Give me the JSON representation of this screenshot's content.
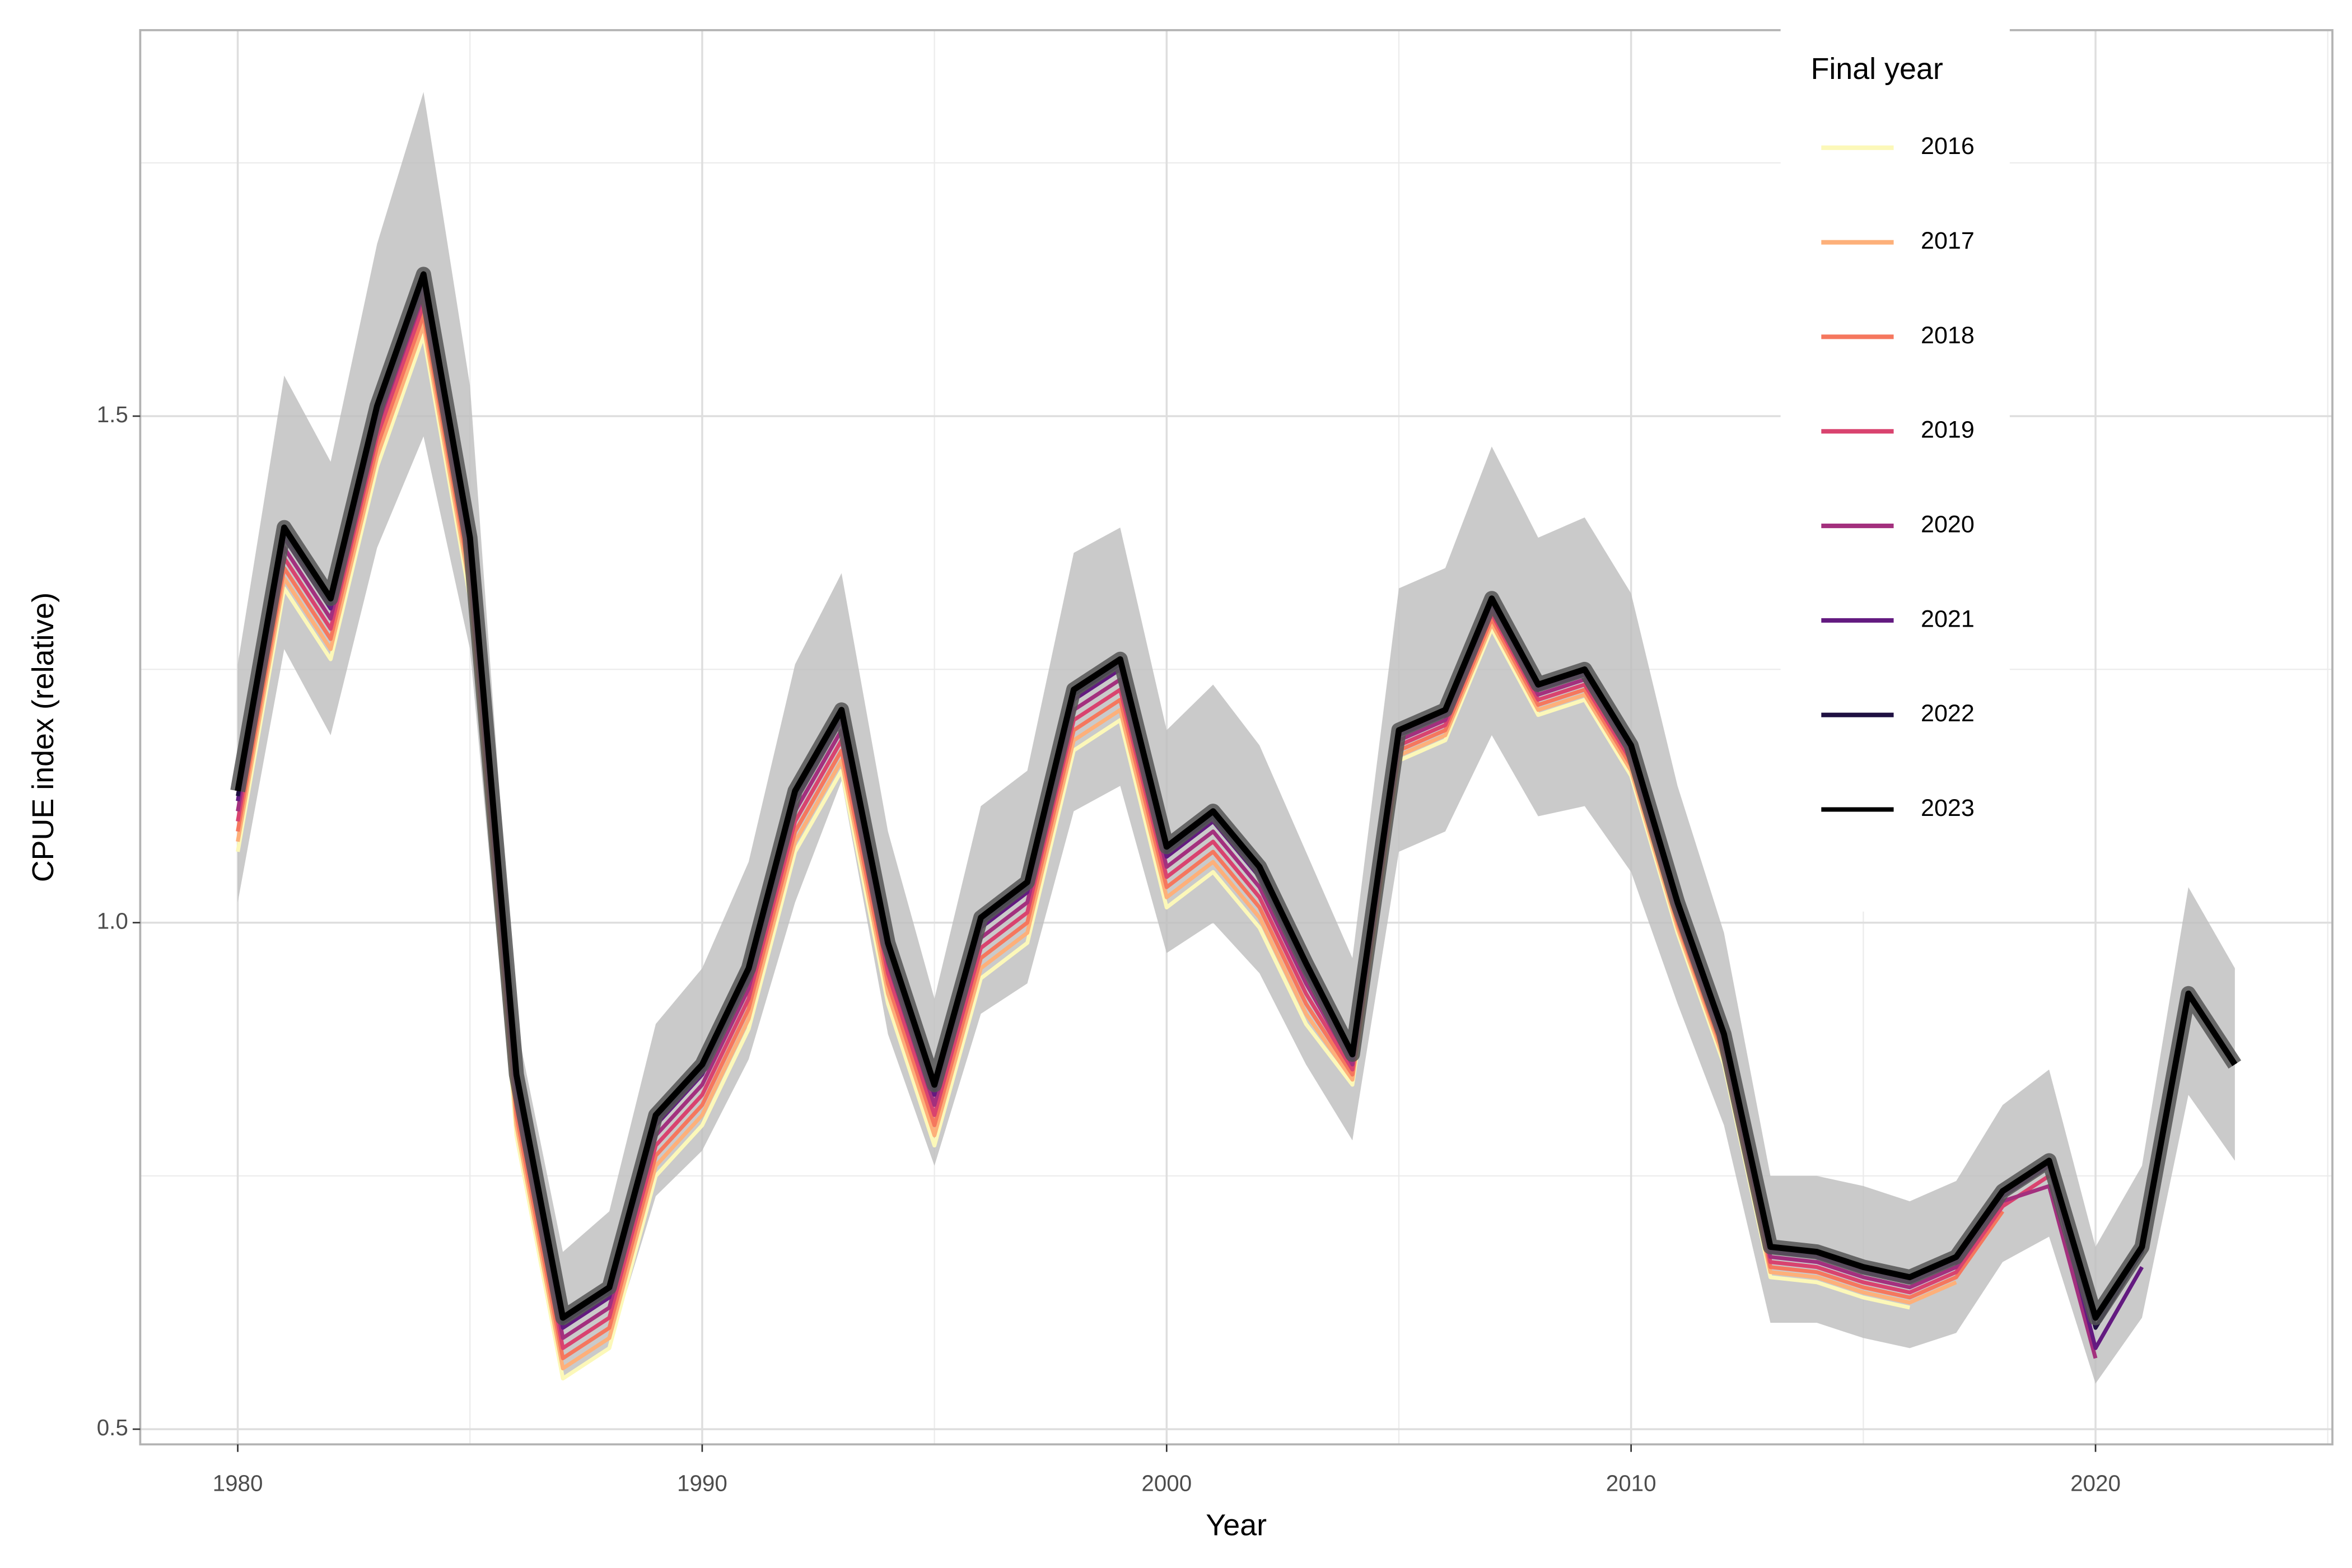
{
  "chart_data": {
    "type": "line",
    "x_label": "Year",
    "y_label": "CPUE index (relative)",
    "legend_title": "Final year",
    "legend_position": "top-right",
    "grid": true,
    "xlim": [
      1977.9,
      2025.1
    ],
    "ylim": [
      0.485,
      1.881
    ],
    "xticks": [
      1980,
      1990,
      2000,
      2010,
      2020
    ],
    "xminorticks": [
      1985,
      1995,
      2005,
      2015,
      2025
    ],
    "yticks": [
      0.5,
      {
        "value": 1,
        "label": "1.0"
      },
      1.5
    ],
    "yminorticks": [
      0.75,
      1.25,
      1.75
    ],
    "x": [
      1980,
      1981,
      1982,
      1983,
      1984,
      1985,
      1986,
      1987,
      1988,
      1989,
      1990,
      1991,
      1992,
      1993,
      1994,
      1995,
      1996,
      1997,
      1998,
      1999,
      2000,
      2001,
      2002,
      2003,
      2004,
      2005,
      2006,
      2007,
      2008,
      2009,
      2010,
      2011,
      2012,
      2013,
      2014,
      2015,
      2016,
      2017,
      2018,
      2019,
      2020,
      2021,
      2022,
      2023
    ],
    "band_color": "#bdbdbd",
    "band_upper": [
      1.255,
      1.54,
      1.455,
      1.67,
      1.82,
      1.53,
      0.9,
      0.675,
      0.715,
      0.9,
      0.955,
      1.06,
      1.255,
      1.345,
      1.09,
      0.925,
      1.115,
      1.15,
      1.365,
      1.39,
      1.19,
      1.235,
      1.175,
      1.07,
      0.965,
      1.33,
      1.35,
      1.47,
      1.38,
      1.4,
      1.325,
      1.135,
      0.99,
      0.75,
      0.75,
      0.74,
      0.725,
      0.745,
      0.82,
      0.855,
      0.68,
      0.76,
      1.035,
      0.955
    ],
    "band_lower": [
      1.02,
      1.27,
      1.185,
      1.37,
      1.48,
      1.27,
      0.78,
      0.55,
      0.58,
      0.73,
      0.775,
      0.865,
      1.02,
      1.14,
      0.89,
      0.76,
      0.91,
      0.94,
      1.11,
      1.135,
      0.97,
      1.0,
      0.95,
      0.86,
      0.785,
      1.07,
      1.09,
      1.185,
      1.105,
      1.115,
      1.05,
      0.92,
      0.8,
      0.605,
      0.605,
      0.59,
      0.58,
      0.595,
      0.665,
      0.69,
      0.545,
      0.61,
      0.83,
      0.765
    ],
    "series": [
      {
        "name": "2016",
        "color": "#FCF8B9",
        "values": [
          1.07,
          1.33,
          1.26,
          1.45,
          1.58,
          1.32,
          0.79,
          0.55,
          0.58,
          0.75,
          0.8,
          0.895,
          1.07,
          1.15,
          0.92,
          0.78,
          0.945,
          0.98,
          1.17,
          1.2,
          1.015,
          1.05,
          0.995,
          0.9,
          0.84,
          1.16,
          1.18,
          1.29,
          1.205,
          1.22,
          1.145,
          0.99,
          0.86,
          0.65,
          0.645,
          0.63,
          0.62,
          null,
          null,
          null,
          null,
          null,
          null,
          null
        ]
      },
      {
        "name": "2017",
        "color": "#FDB07A",
        "values": [
          1.08,
          1.34,
          1.27,
          1.46,
          1.59,
          1.33,
          0.8,
          0.56,
          0.59,
          0.76,
          0.81,
          0.905,
          1.08,
          1.16,
          0.93,
          0.79,
          0.955,
          0.99,
          1.18,
          1.21,
          1.025,
          1.06,
          1.005,
          0.91,
          0.845,
          1.165,
          1.185,
          1.295,
          1.21,
          1.225,
          1.15,
          0.995,
          0.865,
          0.655,
          0.65,
          0.635,
          0.625,
          0.645,
          null,
          null,
          null,
          null,
          null,
          null
        ]
      },
      {
        "name": "2018",
        "color": "#F5775E",
        "values": [
          1.09,
          1.35,
          1.28,
          1.47,
          1.6,
          1.34,
          0.81,
          0.57,
          0.6,
          0.77,
          0.82,
          0.915,
          1.09,
          1.17,
          0.94,
          0.8,
          0.965,
          1.0,
          1.19,
          1.22,
          1.035,
          1.07,
          1.015,
          0.92,
          0.85,
          1.17,
          1.19,
          1.3,
          1.215,
          1.23,
          1.155,
          1.0,
          0.87,
          0.66,
          0.655,
          0.64,
          0.63,
          0.65,
          0.715,
          null,
          null,
          null,
          null,
          null
        ]
      },
      {
        "name": "2019",
        "color": "#D9436F",
        "values": [
          1.1,
          1.36,
          1.29,
          1.48,
          1.61,
          1.35,
          0.82,
          0.58,
          0.61,
          0.78,
          0.83,
          0.925,
          1.1,
          1.18,
          0.95,
          0.81,
          0.975,
          1.01,
          1.2,
          1.23,
          1.045,
          1.08,
          1.025,
          0.93,
          0.855,
          1.175,
          1.195,
          1.305,
          1.22,
          1.235,
          1.16,
          1.005,
          0.875,
          0.665,
          0.66,
          0.645,
          0.635,
          0.655,
          0.72,
          0.75,
          null,
          null,
          null,
          null
        ]
      },
      {
        "name": "2020",
        "color": "#A3307E",
        "values": [
          1.11,
          1.37,
          1.3,
          1.49,
          1.62,
          1.36,
          0.83,
          0.59,
          0.62,
          0.79,
          0.84,
          0.935,
          1.11,
          1.19,
          0.96,
          0.82,
          0.985,
          1.02,
          1.21,
          1.24,
          1.055,
          1.09,
          1.035,
          0.94,
          0.86,
          1.18,
          1.2,
          1.31,
          1.225,
          1.24,
          1.165,
          1.01,
          0.88,
          0.67,
          0.665,
          0.65,
          0.64,
          0.66,
          0.725,
          0.74,
          0.57,
          null,
          null,
          null
        ]
      },
      {
        "name": "2021",
        "color": "#631A80",
        "values": [
          1.12,
          1.38,
          1.31,
          1.5,
          1.63,
          1.37,
          0.84,
          0.6,
          0.63,
          0.8,
          0.85,
          0.945,
          1.12,
          1.2,
          0.97,
          0.83,
          0.995,
          1.03,
          1.22,
          1.25,
          1.065,
          1.1,
          1.045,
          0.95,
          0.865,
          1.185,
          1.205,
          1.315,
          1.23,
          1.245,
          1.17,
          1.015,
          0.885,
          0.675,
          0.67,
          0.655,
          0.645,
          0.665,
          0.73,
          0.76,
          0.58,
          0.66,
          null,
          null
        ]
      },
      {
        "name": "2022",
        "color": "#1F1042",
        "values": [
          1.125,
          1.385,
          1.315,
          1.505,
          1.635,
          1.375,
          0.845,
          0.605,
          0.635,
          0.805,
          0.855,
          0.95,
          1.125,
          1.205,
          0.975,
          0.835,
          1.0,
          1.035,
          1.225,
          1.255,
          1.07,
          1.105,
          1.05,
          0.955,
          0.87,
          1.19,
          1.21,
          1.32,
          1.235,
          1.25,
          1.175,
          1.02,
          0.89,
          0.68,
          0.675,
          0.66,
          0.65,
          0.67,
          0.735,
          0.765,
          0.6,
          0.675,
          0.93,
          null
        ]
      },
      {
        "name": "2023",
        "color": "#000000",
        "values": [
          1.13,
          1.39,
          1.32,
          1.51,
          1.64,
          1.38,
          0.85,
          0.61,
          0.64,
          0.81,
          0.86,
          0.955,
          1.13,
          1.21,
          0.98,
          0.84,
          1.005,
          1.04,
          1.23,
          1.26,
          1.075,
          1.11,
          1.055,
          0.96,
          0.87,
          1.19,
          1.21,
          1.32,
          1.235,
          1.25,
          1.175,
          1.02,
          0.89,
          0.68,
          0.675,
          0.66,
          0.65,
          0.67,
          0.735,
          0.765,
          0.61,
          0.68,
          0.93,
          0.86
        ]
      }
    ]
  }
}
